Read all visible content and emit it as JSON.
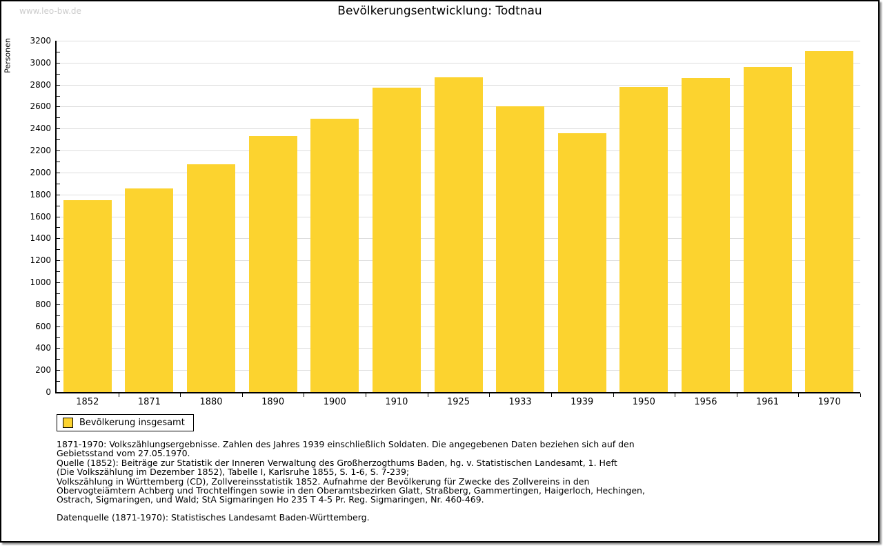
{
  "watermark": "www.leo-bw.de",
  "title": "Bevölkerungsentwicklung: Todtnau",
  "legend": {
    "label": "Bevölkerung insgesamt"
  },
  "colors": {
    "bar": "#FCD32F",
    "grid": "#DDDDDD",
    "axis": "#000000",
    "watermark": "#CCCCCC"
  },
  "chart_data": {
    "type": "bar",
    "title": "Bevölkerungsentwicklung: Todtnau",
    "xlabel": "",
    "ylabel": "Personen",
    "categories": [
      "1852",
      "1871",
      "1880",
      "1890",
      "1900",
      "1910",
      "1925",
      "1933",
      "1939",
      "1950",
      "1956",
      "1961",
      "1970"
    ],
    "values": [
      1750,
      1855,
      2075,
      2330,
      2490,
      2770,
      2865,
      2600,
      2355,
      2780,
      2860,
      2960,
      3105
    ],
    "series_name": "Bevölkerung insgesamt",
    "ylim": [
      0,
      3200
    ],
    "ytick_step": 200,
    "minor_tick_step": 100,
    "grid": true,
    "legend_position": "bottom-left",
    "bar_color": "#FCD32F"
  },
  "footnotes": {
    "lines": [
      "1871-1970: Volkszählungsergebnisse. Zahlen des Jahres 1939 einschließlich Soldaten. Die angegebenen Daten beziehen sich auf den",
      "Gebietsstand vom 27.05.1970.",
      "Quelle (1852): Beiträge zur Statistik der Inneren Verwaltung des Großherzogthums Baden, hg. v. Statistischen Landesamt, 1. Heft",
      "(Die Volkszählung im Dezember 1852), Tabelle I, Karlsruhe 1855, S. 1-6, S. 7-239;",
      "Volkszählung in Württemberg (CD), Zollvereinsstatistik 1852. Aufnahme der Bevölkerung für Zwecke des Zollvereins in den",
      "Obervogteiämtern Achberg und Trochtelfingen sowie in den Oberamtsbezirken Glatt, Straßberg, Gammertingen, Haigerloch, Hechingen,",
      "Ostrach, Sigmaringen, und Wald; StA Sigmaringen Ho 235 T 4-5 Pr. Reg. Sigmaringen, Nr. 460-469."
    ],
    "datasource": "Datenquelle (1871-1970): Statistisches Landesamt Baden-Württemberg."
  }
}
